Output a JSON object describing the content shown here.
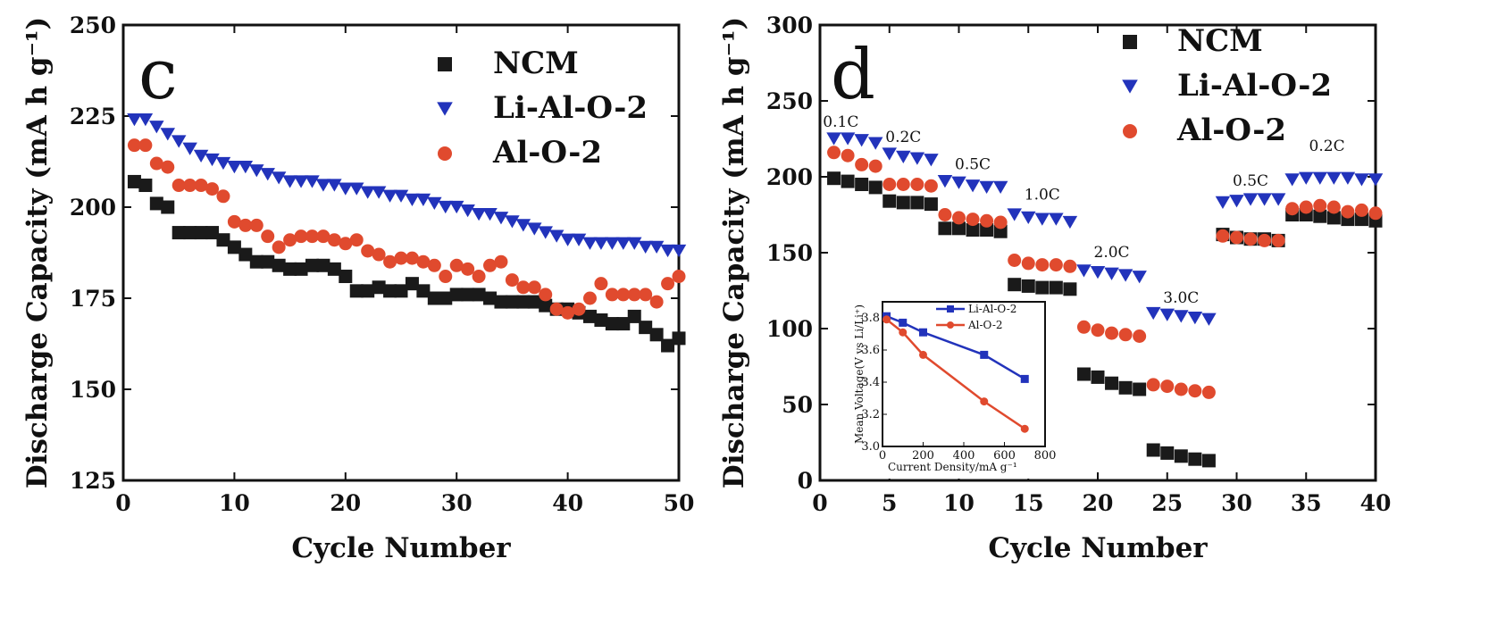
{
  "chart_data": [
    {
      "type": "scatter",
      "panel_label": "c",
      "xlabel": "Cycle Number",
      "ylabel": "Discharge Capacity (mA h g⁻¹)",
      "xlim": [
        0,
        50
      ],
      "ylim": [
        125,
        250
      ],
      "xticks": [
        "0",
        "10",
        "20",
        "30",
        "40",
        "50"
      ],
      "yticks": [
        "125",
        "150",
        "175",
        "200",
        "225",
        "250"
      ],
      "grid": false,
      "legend_position": "top-right",
      "series": [
        {
          "name": "NCM",
          "marker": "square",
          "color": "#1a1a1a",
          "x": [
            1,
            2,
            3,
            4,
            5,
            6,
            7,
            8,
            9,
            10,
            11,
            12,
            13,
            14,
            15,
            16,
            17,
            18,
            19,
            20,
            21,
            22,
            23,
            24,
            25,
            26,
            27,
            28,
            29,
            30,
            31,
            32,
            33,
            34,
            35,
            36,
            37,
            38,
            39,
            40,
            41,
            42,
            43,
            44,
            45,
            46,
            47,
            48,
            49,
            50
          ],
          "y": [
            207,
            206,
            201,
            200,
            193,
            193,
            193,
            193,
            191,
            189,
            187,
            185,
            185,
            184,
            183,
            183,
            184,
            184,
            183,
            181,
            177,
            177,
            178,
            177,
            177,
            179,
            177,
            175,
            175,
            176,
            176,
            176,
            175,
            174,
            174,
            174,
            174,
            173,
            172,
            172,
            171,
            170,
            169,
            168,
            168,
            170,
            167,
            165,
            162,
            164
          ]
        },
        {
          "name": "Li-Al-O-2",
          "marker": "triangle-down",
          "color": "#2233bb",
          "x": [
            1,
            2,
            3,
            4,
            5,
            6,
            7,
            8,
            9,
            10,
            11,
            12,
            13,
            14,
            15,
            16,
            17,
            18,
            19,
            20,
            21,
            22,
            23,
            24,
            25,
            26,
            27,
            28,
            29,
            30,
            31,
            32,
            33,
            34,
            35,
            36,
            37,
            38,
            39,
            40,
            41,
            42,
            43,
            44,
            45,
            46,
            47,
            48,
            49,
            50
          ],
          "y": [
            224,
            224,
            222,
            220,
            218,
            216,
            214,
            213,
            212,
            211,
            211,
            210,
            209,
            208,
            207,
            207,
            207,
            206,
            206,
            205,
            205,
            204,
            204,
            203,
            203,
            202,
            202,
            201,
            200,
            200,
            199,
            198,
            198,
            197,
            196,
            195,
            194,
            193,
            192,
            191,
            191,
            190,
            190,
            190,
            190,
            190,
            189,
            189,
            188,
            188
          ]
        },
        {
          "name": "Al-O-2",
          "marker": "circle",
          "color": "#e04a2e",
          "x": [
            1,
            2,
            3,
            4,
            5,
            6,
            7,
            8,
            9,
            10,
            11,
            12,
            13,
            14,
            15,
            16,
            17,
            18,
            19,
            20,
            21,
            22,
            23,
            24,
            25,
            26,
            27,
            28,
            29,
            30,
            31,
            32,
            33,
            34,
            35,
            36,
            37,
            38,
            39,
            40,
            41,
            42,
            43,
            44,
            45,
            46,
            47,
            48,
            49,
            50
          ],
          "y": [
            217,
            217,
            212,
            211,
            206,
            206,
            206,
            205,
            203,
            196,
            195,
            195,
            192,
            189,
            191,
            192,
            192,
            192,
            191,
            190,
            191,
            188,
            187,
            185,
            186,
            186,
            185,
            184,
            181,
            184,
            183,
            181,
            184,
            185,
            180,
            178,
            178,
            176,
            172,
            171,
            172,
            175,
            179,
            176,
            176,
            176,
            176,
            174,
            179,
            181
          ]
        }
      ]
    },
    {
      "type": "scatter",
      "panel_label": "d",
      "xlabel": "Cycle Number",
      "ylabel": "Discharge Capacity (mA h g⁻¹)",
      "xlim": [
        0,
        40
      ],
      "ylim": [
        0,
        300
      ],
      "xticks": [
        "0",
        "5",
        "10",
        "15",
        "20",
        "25",
        "30",
        "35",
        "40"
      ],
      "yticks": [
        "0",
        "50",
        "100",
        "150",
        "200",
        "250",
        "300"
      ],
      "grid": false,
      "legend_position": "top-right",
      "annotations": [
        {
          "text": "0.1C",
          "x": 1.5,
          "y": 233
        },
        {
          "text": "0.2C",
          "x": 6,
          "y": 223
        },
        {
          "text": "0.5C",
          "x": 11,
          "y": 205
        },
        {
          "text": "1.0C",
          "x": 16,
          "y": 185
        },
        {
          "text": "2.0C",
          "x": 21,
          "y": 147
        },
        {
          "text": "3.0C",
          "x": 26,
          "y": 117
        },
        {
          "text": "0.5C",
          "x": 31,
          "y": 194
        },
        {
          "text": "0.2C",
          "x": 36.5,
          "y": 217
        }
      ],
      "series": [
        {
          "name": "NCM",
          "marker": "square",
          "color": "#1a1a1a",
          "x": [
            1,
            2,
            3,
            4,
            5,
            6,
            7,
            8,
            9,
            10,
            11,
            12,
            13,
            14,
            15,
            16,
            17,
            18,
            19,
            20,
            21,
            22,
            23,
            24,
            25,
            26,
            27,
            28,
            29,
            30,
            31,
            32,
            33,
            34,
            35,
            36,
            37,
            38,
            39,
            40
          ],
          "y": [
            199,
            197,
            195,
            193,
            184,
            183,
            183,
            182,
            166,
            166,
            165,
            165,
            164,
            129,
            128,
            127,
            127,
            126,
            70,
            68,
            64,
            61,
            60,
            20,
            18,
            16,
            14,
            13,
            162,
            160,
            159,
            159,
            158,
            175,
            175,
            174,
            173,
            172,
            172,
            171
          ]
        },
        {
          "name": "Li-Al-O-2",
          "marker": "triangle-down",
          "color": "#2233bb",
          "x": [
            1,
            2,
            3,
            4,
            5,
            6,
            7,
            8,
            9,
            10,
            11,
            12,
            13,
            14,
            15,
            16,
            17,
            18,
            19,
            20,
            21,
            22,
            23,
            24,
            25,
            26,
            27,
            28,
            29,
            30,
            31,
            32,
            33,
            34,
            35,
            36,
            37,
            38,
            39,
            40
          ],
          "y": [
            225,
            225,
            224,
            222,
            215,
            213,
            212,
            211,
            197,
            196,
            194,
            193,
            193,
            175,
            173,
            172,
            172,
            170,
            138,
            137,
            136,
            135,
            134,
            110,
            109,
            108,
            107,
            106,
            183,
            184,
            185,
            185,
            185,
            198,
            199,
            199,
            199,
            199,
            198,
            198
          ]
        },
        {
          "name": "Al-O-2",
          "marker": "circle",
          "color": "#e04a2e",
          "x": [
            1,
            2,
            3,
            4,
            5,
            6,
            7,
            8,
            9,
            10,
            11,
            12,
            13,
            14,
            15,
            16,
            17,
            18,
            19,
            20,
            21,
            22,
            23,
            24,
            25,
            26,
            27,
            28,
            29,
            30,
            31,
            32,
            33,
            34,
            35,
            36,
            37,
            38,
            39,
            40
          ],
          "y": [
            216,
            214,
            208,
            207,
            195,
            195,
            195,
            194,
            175,
            173,
            172,
            171,
            170,
            145,
            143,
            142,
            142,
            141,
            101,
            99,
            97,
            96,
            95,
            63,
            62,
            60,
            59,
            58,
            161,
            160,
            159,
            158,
            158,
            179,
            180,
            181,
            180,
            177,
            178,
            176
          ]
        }
      ],
      "inset": {
        "type": "line",
        "xlabel": "Current Density/mA g⁻¹",
        "ylabel": "Mean Voltage(V vs Li/Li⁺)",
        "xlim": [
          0,
          800
        ],
        "ylim": [
          3.0,
          3.9
        ],
        "xticks": [
          "0",
          "200",
          "400",
          "600",
          "800"
        ],
        "yticks": [
          "3.0",
          "3.2",
          "3.4",
          "3.6",
          "3.8"
        ],
        "series": [
          {
            "name": "Li-Al-O-2",
            "marker": "square",
            "color": "#2233bb",
            "x": [
              20,
              100,
              200,
              500,
              700
            ],
            "y": [
              3.81,
              3.77,
              3.71,
              3.57,
              3.42
            ]
          },
          {
            "name": "Al-O-2",
            "marker": "circle",
            "color": "#e04a2e",
            "x": [
              20,
              100,
              200,
              500,
              700
            ],
            "y": [
              3.79,
              3.71,
              3.57,
              3.28,
              3.11
            ]
          }
        ]
      }
    }
  ]
}
